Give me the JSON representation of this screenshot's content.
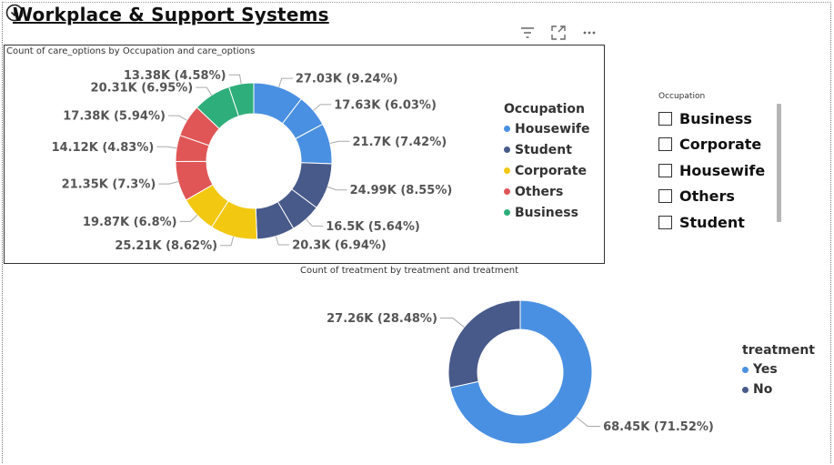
{
  "page": {
    "title": "Workplace & Support Systems"
  },
  "toolbar": {
    "icons": [
      "filter-icon",
      "focus-mode-icon",
      "more-options-icon"
    ]
  },
  "slicer": {
    "title": "Occupation",
    "items": [
      "Business",
      "Corporate",
      "Housewife",
      "Others",
      "Student"
    ]
  },
  "chart_data": [
    {
      "type": "pie",
      "variant": "donut",
      "title": "Count of care_options by Occupation and care_options",
      "legend_title": "Occupation",
      "legend_position": "right",
      "legend": [
        {
          "name": "Housewife",
          "color": "#4a90e2"
        },
        {
          "name": "Student",
          "color": "#485a8a"
        },
        {
          "name": "Corporate",
          "color": "#f2c811"
        },
        {
          "name": "Others",
          "color": "#e05656"
        },
        {
          "name": "Business",
          "color": "#2eae7a"
        }
      ],
      "slices": [
        {
          "group": "Housewife",
          "value": 27030,
          "label": "27.03K (9.24%)",
          "color": "#4a90e2"
        },
        {
          "group": "Housewife",
          "value": 17630,
          "label": "17.63K (6.03%)",
          "color": "#4a90e2"
        },
        {
          "group": "Housewife",
          "value": 21700,
          "label": "21.7K (7.42%)",
          "color": "#4a90e2"
        },
        {
          "group": "Student",
          "value": 24990,
          "label": "24.99K (8.55%)",
          "color": "#485a8a"
        },
        {
          "group": "Student",
          "value": 16500,
          "label": "16.5K (5.64%)",
          "color": "#485a8a"
        },
        {
          "group": "Student",
          "value": 20300,
          "label": "20.3K (6.94%)",
          "color": "#485a8a"
        },
        {
          "group": "Corporate",
          "value": 25210,
          "label": "25.21K (8.62%)",
          "color": "#f2c811"
        },
        {
          "group": "Corporate",
          "value": 19870,
          "label": "19.87K (6.8%)",
          "color": "#f2c811"
        },
        {
          "group": "Others",
          "value": 21350,
          "label": "21.35K (7.3%)",
          "color": "#e05656"
        },
        {
          "group": "Others",
          "value": 14120,
          "label": "14.12K (4.83%)",
          "color": "#e05656"
        },
        {
          "group": "Others",
          "value": 17380,
          "label": "17.38K (5.94%)",
          "color": "#e05656"
        },
        {
          "group": "Business",
          "value": 20310,
          "label": "20.31K (6.95%)",
          "color": "#2eae7a"
        },
        {
          "group": "Business",
          "value": 13380,
          "label": "13.38K (4.58%)",
          "color": "#2eae7a"
        }
      ]
    },
    {
      "type": "pie",
      "variant": "donut",
      "title": "Count of treatment by treatment and treatment",
      "legend_title": "treatment",
      "legend_position": "right",
      "legend": [
        {
          "name": "Yes",
          "color": "#4a90e2"
        },
        {
          "name": "No",
          "color": "#485a8a"
        }
      ],
      "slices": [
        {
          "group": "Yes",
          "value": 68450,
          "label": "68.45K (71.52%)",
          "color": "#4a90e2"
        },
        {
          "group": "No",
          "value": 27260,
          "label": "27.26K (28.48%)",
          "color": "#485a8a"
        }
      ]
    }
  ]
}
